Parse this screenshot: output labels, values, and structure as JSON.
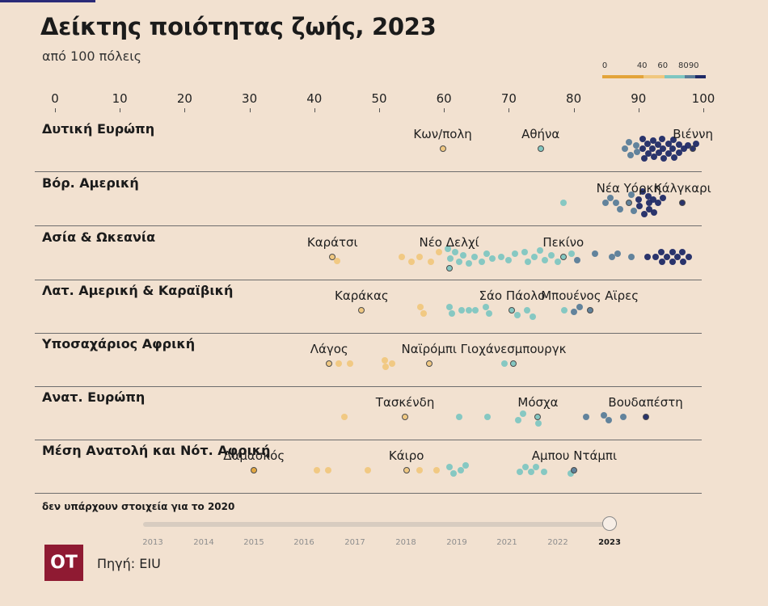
{
  "header": {
    "title": "Δείκτης ποιότητας ζωής, 2023",
    "subtitle": "από 100 πόλεις"
  },
  "legend": {
    "ticks": [
      "0",
      "40",
      "60",
      "80",
      "90"
    ],
    "bands": [
      {
        "from": 0,
        "to": 40,
        "color": "#e3a43a"
      },
      {
        "from": 40,
        "to": 60,
        "color": "#f0c77e"
      },
      {
        "from": 60,
        "to": 80,
        "color": "#7fc6c1"
      },
      {
        "from": 80,
        "to": 90,
        "color": "#5a7d99"
      },
      {
        "from": 90,
        "to": 100,
        "color": "#1f2a66"
      }
    ]
  },
  "footer": {
    "note": "δεν υπάρχουν στοιχεία για το 2020",
    "brand": "ΟΤ",
    "source": "Πηγή: EIU"
  },
  "timeline": {
    "years": [
      "2013",
      "2014",
      "2015",
      "2016",
      "2017",
      "2018",
      "2019",
      "2021",
      "2022",
      "2023"
    ],
    "selected": "2023"
  },
  "chart_data": {
    "type": "scatter",
    "title": "Δείκτης ποιότητας ζωής, 2023",
    "subtitle": "από 100 πόλεις",
    "x_ticks": [
      0,
      10,
      20,
      30,
      40,
      50,
      60,
      70,
      80,
      90,
      100
    ],
    "xlim": [
      0,
      100
    ],
    "regions": [
      {
        "name": "Δυτική Ευρώπη",
        "labels": [
          {
            "city": "Κων/πολη",
            "value": 59.8
          },
          {
            "city": "Αθήνα",
            "value": 74.9
          },
          {
            "city": "Βιέννη",
            "value": 98.4
          }
        ],
        "points": [
          {
            "v": 59.8,
            "o": 0
          },
          {
            "v": 74.9,
            "o": 0
          },
          {
            "v": 87.9,
            "o": 0
          },
          {
            "v": 88.5,
            "o": -8
          },
          {
            "v": 88.8,
            "o": 8
          },
          {
            "v": 89.6,
            "o": -4
          },
          {
            "v": 89.8,
            "o": 4
          },
          {
            "v": 90.6,
            "o": 0
          },
          {
            "v": 90.7,
            "o": -12
          },
          {
            "v": 90.9,
            "o": 12
          },
          {
            "v": 91.4,
            "o": -6
          },
          {
            "v": 91.5,
            "o": 6
          },
          {
            "v": 92.2,
            "o": 0
          },
          {
            "v": 92.3,
            "o": -10
          },
          {
            "v": 92.4,
            "o": 10
          },
          {
            "v": 93.0,
            "o": -5
          },
          {
            "v": 93.1,
            "o": 5
          },
          {
            "v": 93.7,
            "o": -12
          },
          {
            "v": 93.8,
            "o": 0
          },
          {
            "v": 93.9,
            "o": 12
          },
          {
            "v": 94.6,
            "o": -6
          },
          {
            "v": 94.7,
            "o": 6
          },
          {
            "v": 95.3,
            "o": 0
          },
          {
            "v": 95.4,
            "o": -11
          },
          {
            "v": 95.5,
            "o": 11
          },
          {
            "v": 96.2,
            "o": -5
          },
          {
            "v": 96.3,
            "o": 5
          },
          {
            "v": 97.0,
            "o": 0
          },
          {
            "v": 97.6,
            "o": -4
          },
          {
            "v": 98.4,
            "o": 0
          },
          {
            "v": 98.9,
            "o": -6
          }
        ]
      },
      {
        "name": "Βόρ. Αμερική",
        "labels": [
          {
            "city": "Νέα Υόρκη",
            "value": 88.5
          },
          {
            "city": "Κάλγκαρι",
            "value": 96.8
          }
        ],
        "points": [
          {
            "v": 78.4,
            "o": 0
          },
          {
            "v": 84.9,
            "o": 0
          },
          {
            "v": 85.7,
            "o": -6
          },
          {
            "v": 86.5,
            "o": 0
          },
          {
            "v": 87.2,
            "o": 8
          },
          {
            "v": 88.5,
            "o": 0
          },
          {
            "v": 88.9,
            "o": -10
          },
          {
            "v": 89.3,
            "o": 10
          },
          {
            "v": 90.0,
            "o": -4
          },
          {
            "v": 90.2,
            "o": 4
          },
          {
            "v": 90.7,
            "o": -14
          },
          {
            "v": 90.9,
            "o": 14
          },
          {
            "v": 91.5,
            "o": -8
          },
          {
            "v": 91.6,
            "o": 0
          },
          {
            "v": 91.7,
            "o": 8
          },
          {
            "v": 92.3,
            "o": -4
          },
          {
            "v": 92.4,
            "o": 12
          },
          {
            "v": 93.0,
            "o": 0
          },
          {
            "v": 93.8,
            "o": -6
          },
          {
            "v": 96.8,
            "o": 0
          }
        ]
      },
      {
        "name": "Ασία & Ωκεανία",
        "labels": [
          {
            "city": "Καράτσι",
            "value": 42.8
          },
          {
            "city": "Νέο Δελχί",
            "value": 60.8
          },
          {
            "city": "Πεκίνο",
            "value": 78.4
          }
        ],
        "points": [
          {
            "v": 42.8,
            "o": 0
          },
          {
            "v": 43.5,
            "o": 5
          },
          {
            "v": 53.5,
            "o": 0
          },
          {
            "v": 55.0,
            "o": 6
          },
          {
            "v": 56.2,
            "o": 0
          },
          {
            "v": 58.0,
            "o": 6
          },
          {
            "v": 59.2,
            "o": -6
          },
          {
            "v": 60.6,
            "o": -10
          },
          {
            "v": 60.8,
            "o": 14
          },
          {
            "v": 61.0,
            "o": 2
          },
          {
            "v": 61.7,
            "o": -6
          },
          {
            "v": 62.4,
            "o": 6
          },
          {
            "v": 63.0,
            "o": -2
          },
          {
            "v": 63.8,
            "o": 8
          },
          {
            "v": 64.7,
            "o": 0
          },
          {
            "v": 65.8,
            "o": 6
          },
          {
            "v": 66.6,
            "o": -4
          },
          {
            "v": 67.5,
            "o": 2
          },
          {
            "v": 68.8,
            "o": 0
          },
          {
            "v": 70.0,
            "o": 4
          },
          {
            "v": 71.0,
            "o": -4
          },
          {
            "v": 72.5,
            "o": -6
          },
          {
            "v": 73.0,
            "o": 6
          },
          {
            "v": 74.0,
            "o": 0
          },
          {
            "v": 74.8,
            "o": -8
          },
          {
            "v": 75.6,
            "o": 4
          },
          {
            "v": 76.6,
            "o": -2
          },
          {
            "v": 77.5,
            "o": 6
          },
          {
            "v": 78.4,
            "o": 0
          },
          {
            "v": 79.7,
            "o": -4
          },
          {
            "v": 80.6,
            "o": 4
          },
          {
            "v": 83.3,
            "o": -4
          },
          {
            "v": 85.9,
            "o": 0
          },
          {
            "v": 86.8,
            "o": -4
          },
          {
            "v": 88.9,
            "o": 0
          },
          {
            "v": 91.4,
            "o": 0
          },
          {
            "v": 92.7,
            "o": 0
          },
          {
            "v": 93.5,
            "o": -6
          },
          {
            "v": 93.6,
            "o": 6
          },
          {
            "v": 94.4,
            "o": 0
          },
          {
            "v": 95.2,
            "o": -6
          },
          {
            "v": 95.3,
            "o": 6
          },
          {
            "v": 96.0,
            "o": 0
          },
          {
            "v": 96.8,
            "o": -6
          },
          {
            "v": 96.9,
            "o": 6
          },
          {
            "v": 97.7,
            "o": 0
          }
        ]
      },
      {
        "name": "Λατ. Αμερική & Καραϊβική",
        "labels": [
          {
            "city": "Καράκας",
            "value": 47.3
          },
          {
            "city": "Σάο Πάολο",
            "value": 70.5
          },
          {
            "city": "Μπουένος Αϊρες",
            "value": 82.5
          }
        ],
        "points": [
          {
            "v": 47.3,
            "o": 0
          },
          {
            "v": 56.3,
            "o": -4
          },
          {
            "v": 56.9,
            "o": 4
          },
          {
            "v": 60.8,
            "o": -4
          },
          {
            "v": 61.2,
            "o": 4
          },
          {
            "v": 62.7,
            "o": 0
          },
          {
            "v": 63.8,
            "o": 0
          },
          {
            "v": 64.9,
            "o": 0
          },
          {
            "v": 66.4,
            "o": -4
          },
          {
            "v": 67.0,
            "o": 4
          },
          {
            "v": 70.5,
            "o": 0
          },
          {
            "v": 71.3,
            "o": 6
          },
          {
            "v": 72.8,
            "o": 0
          },
          {
            "v": 73.7,
            "o": 8
          },
          {
            "v": 78.6,
            "o": 0
          },
          {
            "v": 80.1,
            "o": 2
          },
          {
            "v": 80.9,
            "o": -4
          },
          {
            "v": 82.5,
            "o": 0
          }
        ]
      },
      {
        "name": "Υποσαχάριος Αφρική",
        "labels": [
          {
            "city": "Λάγος",
            "value": 42.3
          },
          {
            "city": "Ναϊρόμπι",
            "value": 57.7
          },
          {
            "city": "Γιοχάνεσμπουργκ",
            "value": 70.7
          }
        ],
        "points": [
          {
            "v": 42.3,
            "o": 0
          },
          {
            "v": 43.8,
            "o": 0
          },
          {
            "v": 45.5,
            "o": 0
          },
          {
            "v": 50.9,
            "o": -4
          },
          {
            "v": 51.0,
            "o": 4
          },
          {
            "v": 52.0,
            "o": 0
          },
          {
            "v": 57.7,
            "o": 0
          },
          {
            "v": 69.3,
            "o": 0
          },
          {
            "v": 70.7,
            "o": 0
          }
        ]
      },
      {
        "name": "Ανατ. Ευρώπη",
        "labels": [
          {
            "city": "Τασκένδη",
            "value": 54.0
          },
          {
            "city": "Μόσχα",
            "value": 74.5
          },
          {
            "city": "Βουδαπέστη",
            "value": 91.1
          }
        ],
        "points": [
          {
            "v": 44.6,
            "o": 0
          },
          {
            "v": 54.0,
            "o": 0
          },
          {
            "v": 62.4,
            "o": 0
          },
          {
            "v": 66.7,
            "o": 0
          },
          {
            "v": 71.5,
            "o": 4
          },
          {
            "v": 72.2,
            "o": -4
          },
          {
            "v": 74.5,
            "o": 0
          },
          {
            "v": 74.6,
            "o": 8
          },
          {
            "v": 81.9,
            "o": 0
          },
          {
            "v": 84.7,
            "o": -2
          },
          {
            "v": 85.4,
            "o": 4
          },
          {
            "v": 87.6,
            "o": 0
          },
          {
            "v": 91.1,
            "o": 0
          }
        ]
      },
      {
        "name": "Μέση Ανατολή και Νότ. Αφρική",
        "labels": [
          {
            "city": "Δαμασκός",
            "value": 30.7
          },
          {
            "city": "Κάιρο",
            "value": 54.2
          },
          {
            "city": "Αμπου Ντάμπι",
            "value": 80.1
          }
        ],
        "points": [
          {
            "v": 30.7,
            "o": 0
          },
          {
            "v": 40.4,
            "o": 0
          },
          {
            "v": 42.1,
            "o": 0
          },
          {
            "v": 48.2,
            "o": 0
          },
          {
            "v": 54.2,
            "o": 0
          },
          {
            "v": 56.2,
            "o": 0
          },
          {
            "v": 58.8,
            "o": 0
          },
          {
            "v": 60.9,
            "o": -4
          },
          {
            "v": 61.5,
            "o": 4
          },
          {
            "v": 62.6,
            "o": 0
          },
          {
            "v": 63.4,
            "o": -6
          },
          {
            "v": 71.7,
            "o": 2
          },
          {
            "v": 72.6,
            "o": -4
          },
          {
            "v": 73.4,
            "o": 2
          },
          {
            "v": 74.2,
            "o": -4
          },
          {
            "v": 75.4,
            "o": 2
          },
          {
            "v": 79.5,
            "o": 4
          },
          {
            "v": 80.1,
            "o": 0
          }
        ]
      }
    ]
  }
}
